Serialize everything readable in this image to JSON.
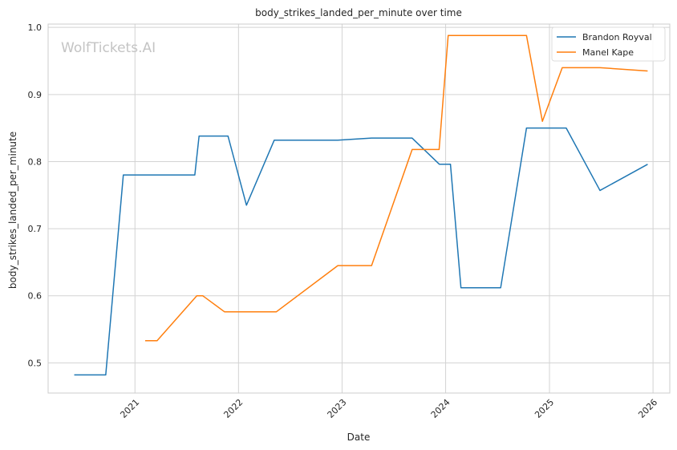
{
  "chart_data": {
    "type": "line",
    "title": "body_strikes_landed_per_minute over time",
    "xlabel": "Date",
    "ylabel": "body_strikes_landed_per_minute",
    "watermark": "WolfTickets.AI",
    "x_type": "date",
    "xlim": [
      "2020-03-01",
      "2026-03-01"
    ],
    "ylim": [
      0.455,
      1.005
    ],
    "x_ticks": [
      "2021",
      "2022",
      "2023",
      "2024",
      "2025",
      "2026"
    ],
    "y_ticks": [
      0.5,
      0.6,
      0.7,
      0.8,
      0.9,
      1.0
    ],
    "grid": true,
    "legend_position": "top-right",
    "series": [
      {
        "name": "Brandon Royval",
        "color": "#1f77b4",
        "points": [
          [
            "2020-06-01",
            0.482
          ],
          [
            "2020-09-20",
            0.482
          ],
          [
            "2020-11-21",
            0.78
          ],
          [
            "2021-07-31",
            0.78
          ],
          [
            "2021-08-15",
            0.838
          ],
          [
            "2021-11-25",
            0.838
          ],
          [
            "2022-01-29",
            0.735
          ],
          [
            "2022-05-07",
            0.832
          ],
          [
            "2022-12-17",
            0.832
          ],
          [
            "2023-04-15",
            0.835
          ],
          [
            "2023-09-05",
            0.835
          ],
          [
            "2023-12-10",
            0.796
          ],
          [
            "2024-01-18",
            0.796
          ],
          [
            "2024-02-24",
            0.612
          ],
          [
            "2024-07-13",
            0.612
          ],
          [
            "2024-10-12",
            0.85
          ],
          [
            "2025-03-01",
            0.85
          ],
          [
            "2025-06-28",
            0.757
          ],
          [
            "2025-12-13",
            0.796
          ]
        ]
      },
      {
        "name": "Manel Kape",
        "color": "#ff7f0e",
        "points": [
          [
            "2021-02-06",
            0.533
          ],
          [
            "2021-03-20",
            0.533
          ],
          [
            "2021-08-07",
            0.6
          ],
          [
            "2021-08-28",
            0.6
          ],
          [
            "2021-11-13",
            0.576
          ],
          [
            "2022-05-14",
            0.576
          ],
          [
            "2022-12-17",
            0.645
          ],
          [
            "2023-04-15",
            0.645
          ],
          [
            "2023-09-05",
            0.818
          ],
          [
            "2023-12-09",
            0.818
          ],
          [
            "2024-01-10",
            0.988
          ],
          [
            "2024-10-12",
            0.988
          ],
          [
            "2024-12-07",
            0.86
          ],
          [
            "2025-02-15",
            0.94
          ],
          [
            "2025-06-28",
            0.94
          ],
          [
            "2025-12-13",
            0.935
          ]
        ]
      }
    ]
  }
}
